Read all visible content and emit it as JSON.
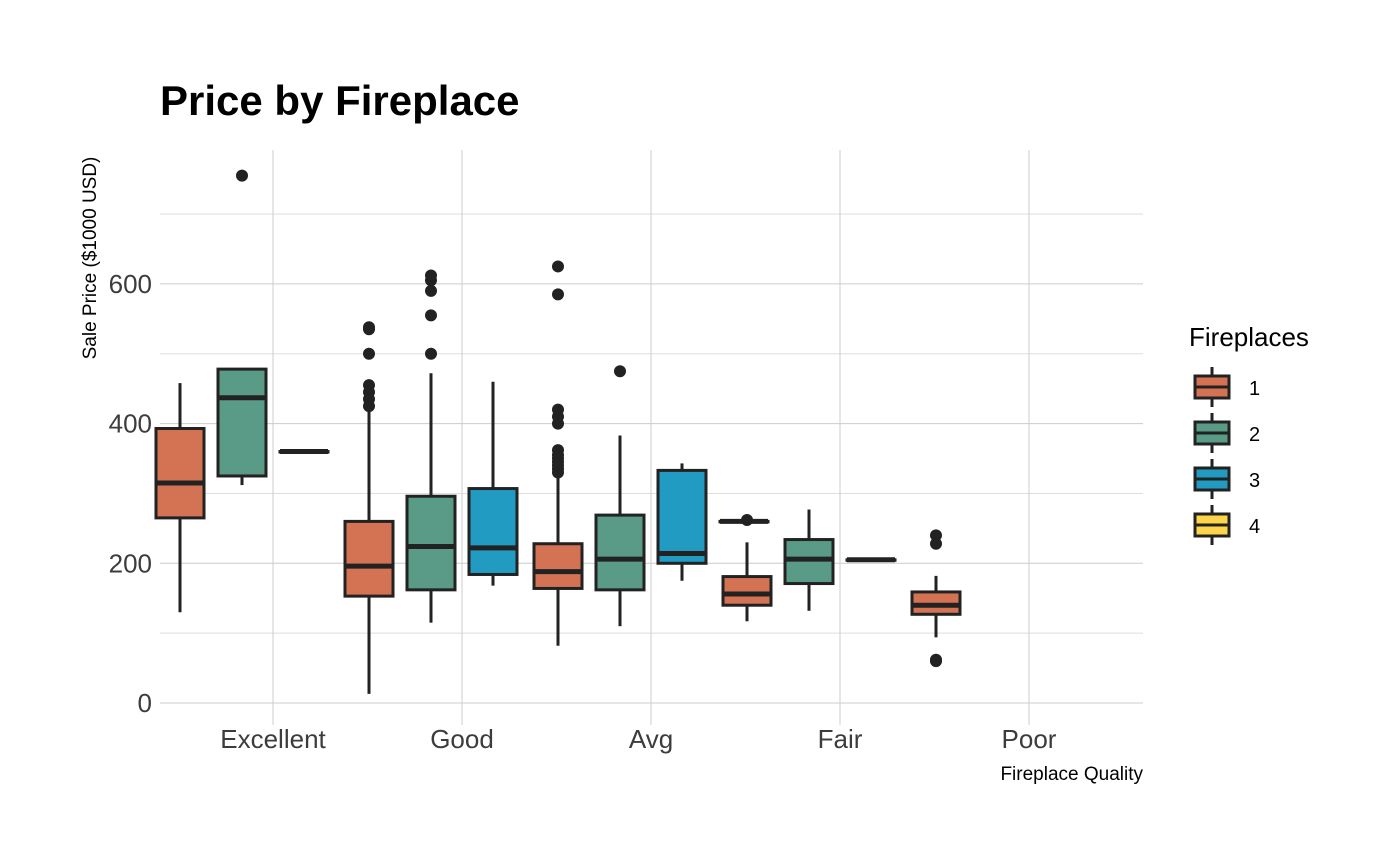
{
  "chart_data": {
    "type": "boxplot",
    "title": "Price by Fireplace",
    "xlabel": "Fireplace Quality",
    "ylabel": "Sale Price ($1000 USD)",
    "ylim": [
      -20,
      790
    ],
    "yticks": [
      0,
      200,
      400,
      600
    ],
    "grid": true,
    "categories": [
      "Excellent",
      "Good",
      "Avg",
      "Fair",
      "Poor"
    ],
    "legend": {
      "title": "Fireplaces",
      "position": "right",
      "entries": [
        "1",
        "2",
        "3",
        "4"
      ]
    },
    "colors": {
      "1": "#d47254",
      "2": "#5a9b87",
      "3": "#219bc2",
      "4": "#fcd54a",
      "outline": "#222222"
    },
    "groups": [
      {
        "category": "Excellent",
        "fireplaces": "1",
        "whisker_low": 130,
        "q1": 265,
        "median": 315,
        "q3": 393,
        "whisker_high": 458,
        "outliers": []
      },
      {
        "category": "Excellent",
        "fireplaces": "2",
        "whisker_low": 312,
        "q1": 325,
        "median": 437,
        "q3": 478,
        "whisker_high": 478,
        "outliers": [
          755
        ]
      },
      {
        "category": "Excellent",
        "fireplaces": "3",
        "whisker_low": 360,
        "q1": 360,
        "median": 360,
        "q3": 360,
        "whisker_high": 360,
        "outliers": []
      },
      {
        "category": "Good",
        "fireplaces": "1",
        "whisker_low": 13,
        "q1": 153,
        "median": 196,
        "q3": 260,
        "whisker_high": 418,
        "outliers": [
          425,
          435,
          445,
          455,
          500,
          535,
          538
        ]
      },
      {
        "category": "Good",
        "fireplaces": "2",
        "whisker_low": 115,
        "q1": 162,
        "median": 224,
        "q3": 296,
        "whisker_high": 472,
        "outliers": [
          500,
          555,
          590,
          605,
          612
        ]
      },
      {
        "category": "Good",
        "fireplaces": "3",
        "whisker_low": 168,
        "q1": 184,
        "median": 222,
        "q3": 307,
        "whisker_high": 460,
        "outliers": []
      },
      {
        "category": "Avg",
        "fireplaces": "1",
        "whisker_low": 82,
        "q1": 164,
        "median": 188,
        "q3": 228,
        "whisker_high": 325,
        "outliers": [
          330,
          335,
          340,
          345,
          350,
          355,
          362,
          400,
          410,
          420,
          585,
          625
        ]
      },
      {
        "category": "Avg",
        "fireplaces": "2",
        "whisker_low": 110,
        "q1": 162,
        "median": 206,
        "q3": 269,
        "whisker_high": 383,
        "outliers": [
          475
        ]
      },
      {
        "category": "Avg",
        "fireplaces": "3",
        "whisker_low": 175,
        "q1": 200,
        "median": 214,
        "q3": 333,
        "whisker_high": 343,
        "outliers": []
      },
      {
        "category": "Avg",
        "fireplaces": "4",
        "whisker_low": 260,
        "q1": 260,
        "median": 260,
        "q3": 260,
        "whisker_high": 260,
        "outliers": []
      },
      {
        "category": "Fair",
        "fireplaces": "1",
        "whisker_low": 117,
        "q1": 140,
        "median": 156,
        "q3": 181,
        "whisker_high": 230,
        "outliers": [
          262
        ]
      },
      {
        "category": "Fair",
        "fireplaces": "2",
        "whisker_low": 132,
        "q1": 171,
        "median": 206,
        "q3": 234,
        "whisker_high": 277,
        "outliers": []
      },
      {
        "category": "Fair",
        "fireplaces": "3",
        "whisker_low": 205,
        "q1": 205,
        "median": 205,
        "q3": 205,
        "whisker_high": 205,
        "outliers": []
      },
      {
        "category": "Poor",
        "fireplaces": "1",
        "whisker_low": 94,
        "q1": 127,
        "median": 140,
        "q3": 159,
        "whisker_high": 182,
        "outliers": [
          60,
          62,
          228,
          240
        ]
      }
    ]
  }
}
